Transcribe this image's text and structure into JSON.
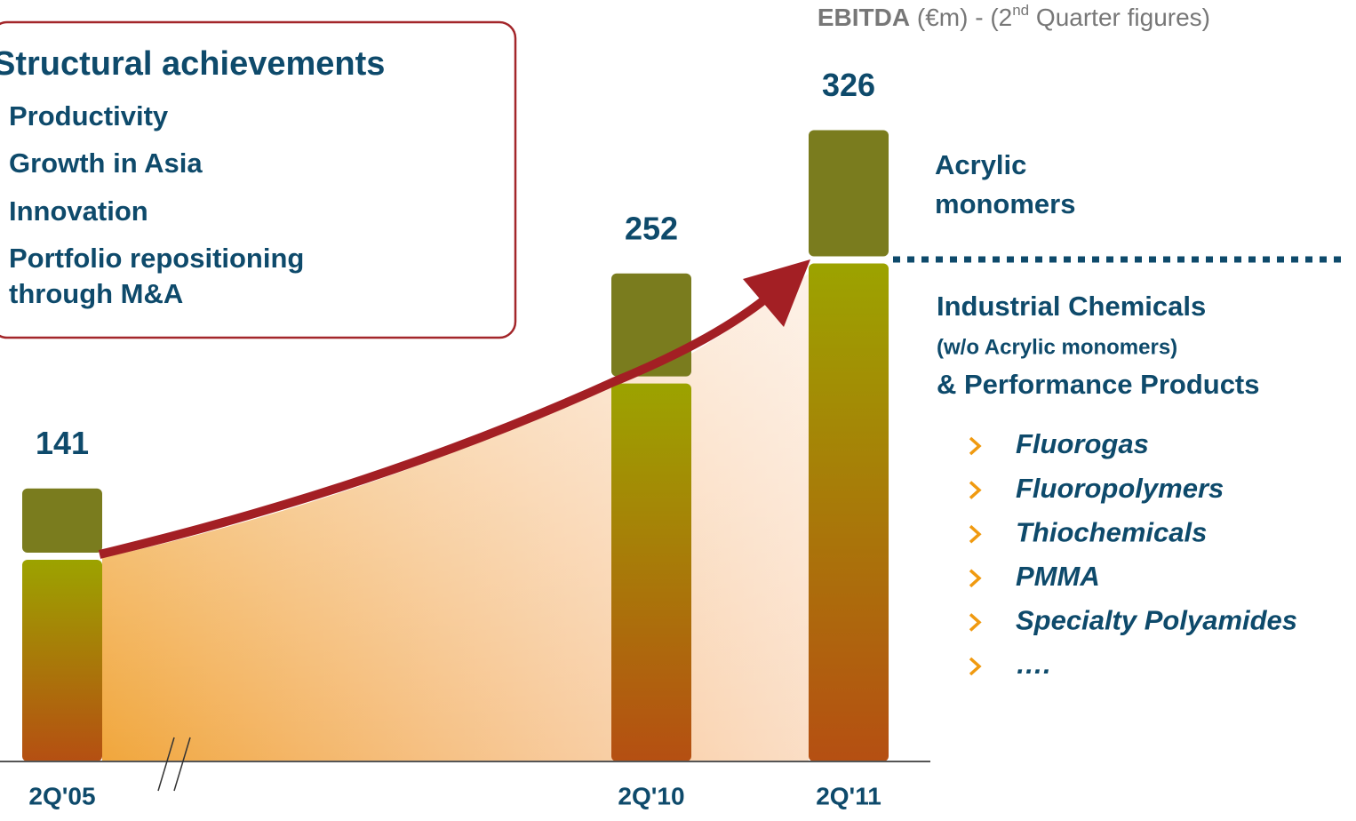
{
  "chart_data": {
    "type": "stacked_bar",
    "title": [
      "EBITDA",
      " (€m) - (2",
      "nd",
      " Quarter figures)"
    ],
    "categories": [
      "2Q'05",
      "2Q'10",
      "2Q'11"
    ],
    "series": [
      {
        "name": [
          "Industrial Chemicals",
          "(w/o Acrylic monomers)",
          "& Performance Products"
        ],
        "color": "#9ca300",
        "color_bottom": "#b54f12",
        "values": [
          106,
          197,
          259
        ]
      },
      {
        "name": [
          "Acrylic",
          "monomers"
        ],
        "color": "#7a7c1e",
        "values": [
          35,
          55,
          67
        ]
      }
    ],
    "totals": [
      141,
      252,
      326
    ],
    "ylim": [
      0,
      340
    ],
    "products": [
      "Fluorogas",
      "Fluoropolymers",
      "Thiochemicals",
      "PMMA",
      "Specialty Polyamides",
      "…."
    ],
    "box": {
      "title": "Structural achievements",
      "items": [
        "Productivity",
        "Growth in Asia",
        "Innovation",
        "Portfolio repositioning",
        "through M&A"
      ]
    }
  }
}
